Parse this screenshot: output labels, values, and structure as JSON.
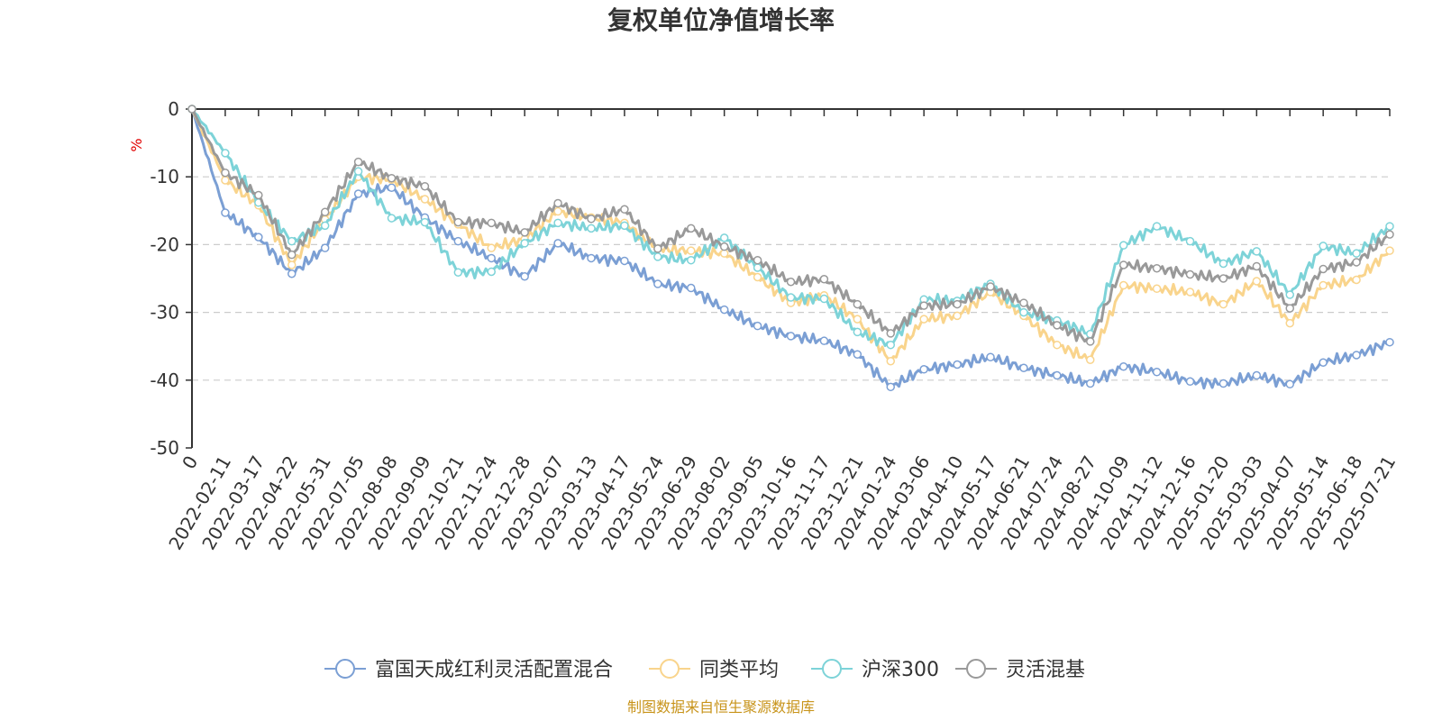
{
  "chart_data": {
    "type": "line",
    "title": "复权单位净值增长率",
    "ylabel": "%",
    "xlabel": "",
    "ylim": [
      -50,
      0
    ],
    "yticks": [
      0,
      -10,
      -20,
      -30,
      -40,
      -50
    ],
    "grid": true,
    "legend_position": "bottom",
    "source_note": "制图数据来自恒生聚源数据库",
    "x": [
      "0",
      "2022-02-11",
      "2022-03-17",
      "2022-04-22",
      "2022-05-31",
      "2022-07-05",
      "2022-08-08",
      "2022-09-09",
      "2022-10-21",
      "2022-11-24",
      "2022-12-28",
      "2023-02-07",
      "2023-03-13",
      "2023-04-17",
      "2023-05-24",
      "2023-06-29",
      "2023-08-02",
      "2023-09-05",
      "2023-10-16",
      "2023-11-17",
      "2023-12-21",
      "2024-01-24",
      "2024-03-06",
      "2024-04-10",
      "2024-05-17",
      "2024-06-21",
      "2024-07-24",
      "2024-08-27",
      "2024-10-09",
      "2024-11-12",
      "2024-12-16",
      "2025-01-20",
      "2025-03-03",
      "2025-04-07",
      "2025-05-14",
      "2025-06-18",
      "2025-07-21"
    ],
    "series": [
      {
        "name": "富国天成红利灵活配置混合",
        "color": "#7b9fd4",
        "values": [
          0,
          -15.3,
          -18.9,
          -24.3,
          -20.5,
          -12.5,
          -11.6,
          -16.0,
          -19.5,
          -22.0,
          -24.7,
          -19.8,
          -22.0,
          -22.4,
          -25.8,
          -26.4,
          -29.6,
          -32.0,
          -33.5,
          -34.2,
          -36.2,
          -41.0,
          -38.4,
          -37.7,
          -36.6,
          -38.2,
          -39.3,
          -40.5,
          -38.0,
          -38.8,
          -40.2,
          -40.5,
          -39.3,
          -40.6,
          -37.4,
          -36.3,
          -34.4
        ]
      },
      {
        "name": "同类平均",
        "color": "#f9d48c",
        "values": [
          0,
          -10.5,
          -14.2,
          -23.0,
          -16.3,
          -10.0,
          -10.4,
          -13.3,
          -17.0,
          -20.5,
          -19.2,
          -15.1,
          -16.0,
          -16.8,
          -20.6,
          -20.9,
          -21.3,
          -24.8,
          -28.6,
          -27.5,
          -31.0,
          -37.2,
          -31.0,
          -30.5,
          -27.0,
          -30.5,
          -34.8,
          -37.0,
          -26.0,
          -26.5,
          -27.0,
          -28.8,
          -25.4,
          -31.6,
          -26.0,
          -25.2,
          -20.9
        ]
      },
      {
        "name": "沪深300",
        "color": "#7dd3d8",
        "values": [
          0,
          -6.5,
          -13.8,
          -19.5,
          -17.2,
          -9.2,
          -16.1,
          -16.7,
          -24.1,
          -24.0,
          -19.8,
          -16.8,
          -17.6,
          -17.2,
          -21.8,
          -22.3,
          -19.0,
          -23.4,
          -27.8,
          -28.0,
          -32.9,
          -34.8,
          -28.1,
          -28.3,
          -25.8,
          -30.0,
          -31.2,
          -33.2,
          -20.1,
          -17.3,
          -19.5,
          -22.8,
          -21.0,
          -27.4,
          -20.2,
          -21.3,
          -17.3
        ]
      },
      {
        "name": "灵活混基",
        "color": "#999999",
        "values": [
          0,
          -9.4,
          -12.7,
          -21.5,
          -15.2,
          -7.8,
          -10.2,
          -11.4,
          -16.7,
          -16.8,
          -18.2,
          -13.9,
          -16.2,
          -14.8,
          -20.6,
          -17.6,
          -20.3,
          -22.3,
          -25.5,
          -25.1,
          -28.8,
          -33.1,
          -29.0,
          -28.8,
          -26.2,
          -28.6,
          -31.9,
          -34.3,
          -23.0,
          -23.5,
          -24.4,
          -25.0,
          -23.2,
          -29.4,
          -23.6,
          -22.6,
          -18.5
        ]
      }
    ]
  }
}
